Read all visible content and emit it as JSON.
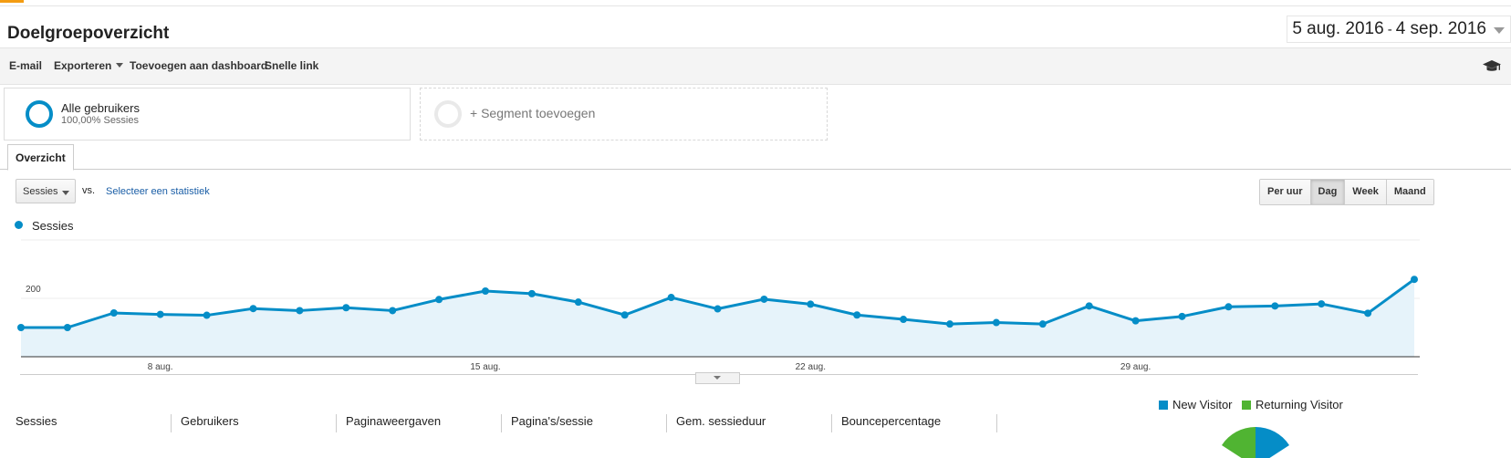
{
  "header": {
    "title": "Doelgroepoverzicht",
    "date_start": "5 aug. 2016",
    "date_sep": "-",
    "date_end": "4 sep. 2016"
  },
  "toolbar": {
    "email": "E-mail",
    "export": "Exporteren",
    "add_dashboard": "Toevoegen aan dashboard",
    "shortcut": "Snelle link",
    "icon": "graduation-cap-icon"
  },
  "segments": {
    "active_name": "Alle gebruikers",
    "active_sub": "100,00% Sessies",
    "add_label": "+ Segment toevoegen"
  },
  "tabs": [
    {
      "label": "Overzicht"
    }
  ],
  "controls": {
    "metric": "Sessies",
    "vs": "vs.",
    "select_metric": "Selecteer een statistiek",
    "granularity": [
      "Per uur",
      "Dag",
      "Week",
      "Maand"
    ],
    "active_granularity": "Dag"
  },
  "chart_data": {
    "type": "area",
    "series": [
      {
        "name": "Sessies",
        "color": "#058dc7",
        "values": [
          100,
          100,
          150,
          145,
          142,
          165,
          158,
          168,
          158,
          196,
          225,
          216,
          187,
          143,
          203,
          164,
          197,
          180,
          143,
          128,
          112,
          117,
          112,
          174,
          123,
          138,
          171,
          174,
          181,
          149,
          265
        ]
      }
    ],
    "x_tick_labels": [
      {
        "index": 3,
        "label": "8 aug."
      },
      {
        "index": 10,
        "label": "15 aug."
      },
      {
        "index": 17,
        "label": "22 aug."
      },
      {
        "index": 24,
        "label": "29 aug."
      }
    ],
    "y_ticks": [
      200,
      400
    ],
    "ylim": [
      0,
      400
    ],
    "grid": true,
    "legend": "top-left"
  },
  "kpis": [
    "Sessies",
    "Gebruikers",
    "Paginaweergaven",
    "Pagina's/sessie",
    "Gem. sessieduur",
    "Bouncepercentage"
  ],
  "pie_legend": [
    {
      "label": "New Visitor",
      "color": "#058dc7"
    },
    {
      "label": "Returning Visitor",
      "color": "#50b432"
    }
  ]
}
